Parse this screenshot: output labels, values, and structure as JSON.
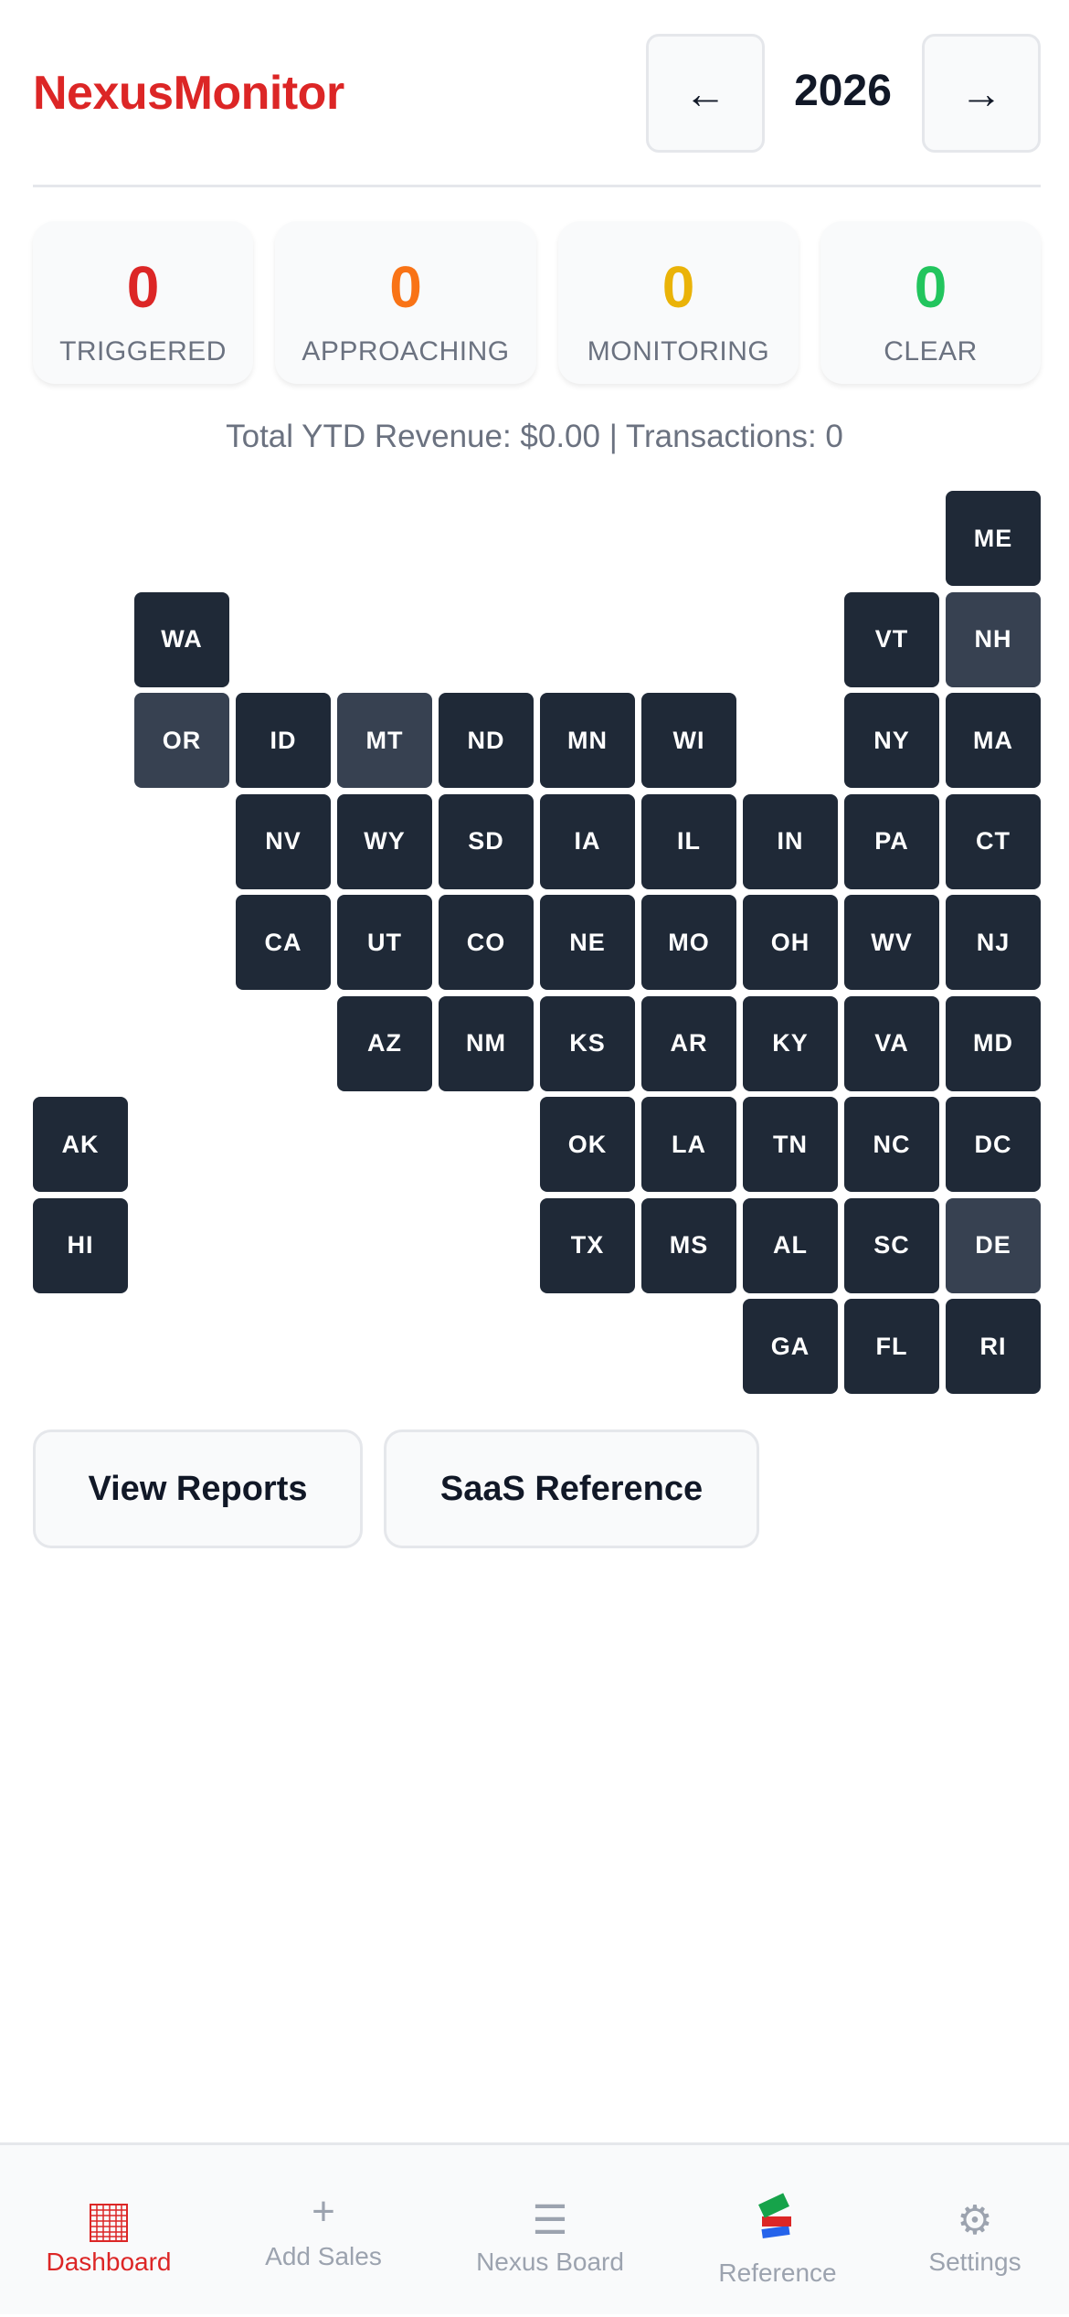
{
  "header": {
    "title": "NexusMonitor",
    "year": "2026",
    "prev_label": "←",
    "next_label": "→"
  },
  "stats": [
    {
      "value": "0",
      "label": "TRIGGERED",
      "color": "#dc2626"
    },
    {
      "value": "0",
      "label": "APPROACHING",
      "color": "#f97316"
    },
    {
      "value": "0",
      "label": "MONITORING",
      "color": "#eab308"
    },
    {
      "value": "0",
      "label": "CLEAR",
      "color": "#22c55e"
    }
  ],
  "summary": "Total YTD Revenue: $0.00 | Transactions: 0",
  "states": [
    {
      "code": "ME"
    },
    {
      "code": "WA"
    },
    {
      "code": "VT"
    },
    {
      "code": "NH",
      "highlighted": true
    },
    {
      "code": "OR",
      "highlighted": true
    },
    {
      "code": "ID"
    },
    {
      "code": "MT",
      "highlighted": true
    },
    {
      "code": "ND"
    },
    {
      "code": "MN"
    },
    {
      "code": "WI"
    },
    {
      "code": "NY"
    },
    {
      "code": "MA"
    },
    {
      "code": "NV"
    },
    {
      "code": "WY"
    },
    {
      "code": "SD"
    },
    {
      "code": "IA"
    },
    {
      "code": "IL"
    },
    {
      "code": "IN"
    },
    {
      "code": "PA"
    },
    {
      "code": "CT"
    },
    {
      "code": "CA"
    },
    {
      "code": "UT"
    },
    {
      "code": "CO"
    },
    {
      "code": "NE"
    },
    {
      "code": "MO"
    },
    {
      "code": "OH"
    },
    {
      "code": "WV"
    },
    {
      "code": "NJ"
    },
    {
      "code": "AZ"
    },
    {
      "code": "NM"
    },
    {
      "code": "KS"
    },
    {
      "code": "AR"
    },
    {
      "code": "KY"
    },
    {
      "code": "VA"
    },
    {
      "code": "MD"
    },
    {
      "code": "AK"
    },
    {
      "code": "OK"
    },
    {
      "code": "LA"
    },
    {
      "code": "TN"
    },
    {
      "code": "NC"
    },
    {
      "code": "DC"
    },
    {
      "code": "HI"
    },
    {
      "code": "TX"
    },
    {
      "code": "MS"
    },
    {
      "code": "AL"
    },
    {
      "code": "SC"
    },
    {
      "code": "DE",
      "highlighted": true
    },
    {
      "code": "GA"
    },
    {
      "code": "FL"
    },
    {
      "code": "RI"
    }
  ],
  "actions": {
    "view_reports": "View Reports",
    "saas_reference": "SaaS Reference"
  },
  "nav": [
    {
      "label": "Dashboard",
      "icon": "grid-icon",
      "active": true
    },
    {
      "label": "Add Sales",
      "icon": "plus-icon"
    },
    {
      "label": "Nexus Board",
      "icon": "menu-icon"
    },
    {
      "label": "Reference",
      "icon": "books-icon"
    },
    {
      "label": "Settings",
      "icon": "gear-icon"
    }
  ],
  "colors": {
    "brand": "#dc2626",
    "tile": "#1f2937",
    "tile_highlight": "#374151"
  }
}
